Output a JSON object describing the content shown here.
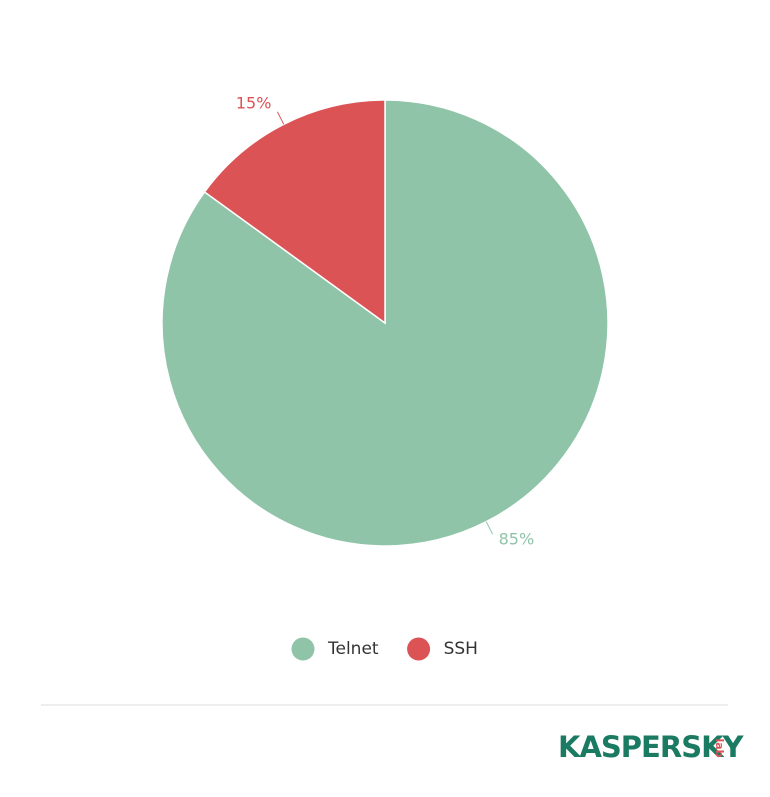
{
  "chart_data": {
    "type": "pie",
    "categories": [
      "Telnet",
      "SSH"
    ],
    "values": [
      85,
      15
    ],
    "value_labels": [
      "85%",
      "15%"
    ],
    "colors": [
      "#8fc4a8",
      "#dc5356"
    ],
    "legend": "bottom"
  },
  "logo": {
    "name": "KASPERSKY",
    "suffix": "lab"
  }
}
